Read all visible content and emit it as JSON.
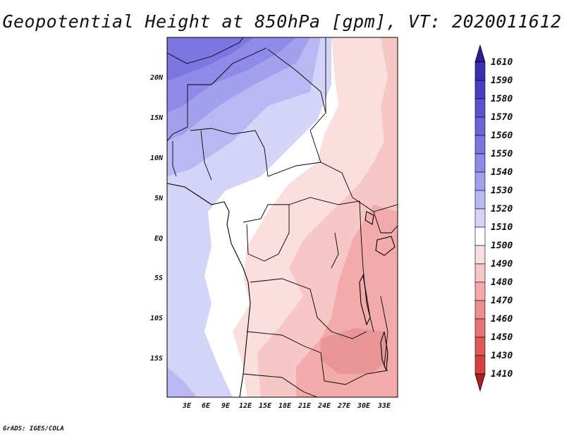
{
  "title": "Geopotential Height at 850hPa [gpm], VT: 2020011612",
  "credit": "GrADS: IGES/COLA",
  "map": {
    "lat_labels": [
      "20N",
      "15N",
      "10N",
      "5N",
      "EQ",
      "5S",
      "10S",
      "15S"
    ],
    "lon_labels": [
      "3E",
      "6E",
      "9E",
      "12E",
      "15E",
      "18E",
      "21E",
      "24E",
      "27E",
      "30E",
      "33E"
    ]
  },
  "colorbar": {
    "levels": [
      "1610",
      "1590",
      "1580",
      "1570",
      "1560",
      "1550",
      "1540",
      "1530",
      "1520",
      "1510",
      "1500",
      "1490",
      "1480",
      "1470",
      "1460",
      "1450",
      "1430",
      "1410"
    ],
    "colors": {
      "top_arrow": "#2a1f96",
      "bottom_arrow": "#b01f1f",
      "bins": [
        "#3a2fae",
        "#4a3fc0",
        "#5c52cc",
        "#6c63d7",
        "#7d76e0",
        "#8f89e8",
        "#a3a0ee",
        "#b9b8f3",
        "#d3d4f8",
        "#ffffff",
        "#fbdede",
        "#f7c6c6",
        "#f2aaaa",
        "#ec8f8f",
        "#e67474",
        "#df5959",
        "#d54141"
      ]
    }
  }
}
